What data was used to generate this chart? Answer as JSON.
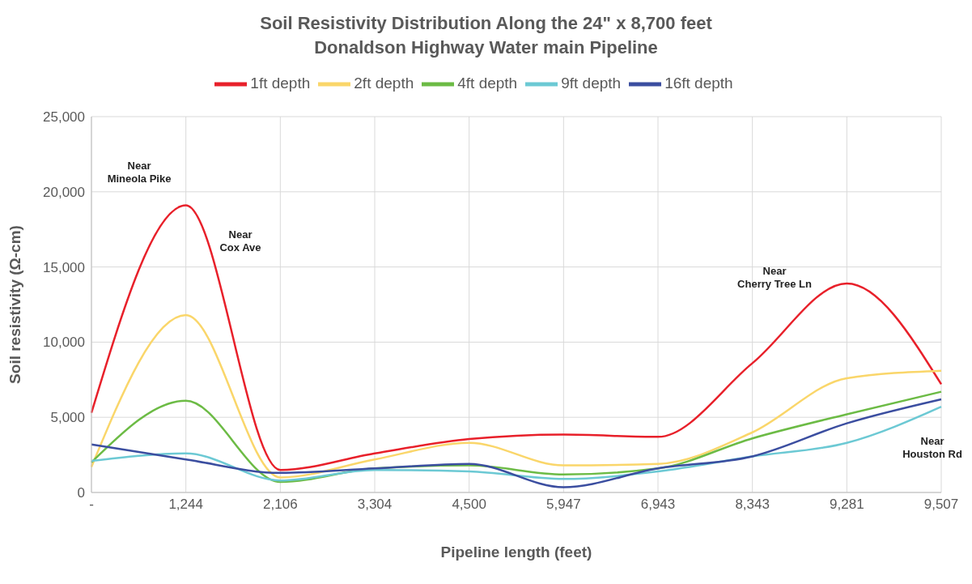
{
  "chart_data": {
    "type": "line",
    "title": "Soil Resistivity Distribution Along the 24\" x 8,700 feet\nDonaldson Highway Water main Pipeline",
    "xlabel": "Pipeline length (feet)",
    "ylabel": "Soil resistivity (Ω-cm)",
    "categories": [
      "-",
      "1,244",
      "2,106",
      "3,304",
      "4,500",
      "5,947",
      "6,943",
      "8,343",
      "9,281",
      "9,507"
    ],
    "series": [
      {
        "name": "1ft depth",
        "color": "#e8202a",
        "values": [
          5300,
          19100,
          1500,
          2600,
          3550,
          3850,
          3700,
          8600,
          13900,
          7200
        ]
      },
      {
        "name": "2ft depth",
        "color": "#fad66a",
        "values": [
          1700,
          11800,
          1000,
          2200,
          3300,
          1800,
          1900,
          4000,
          7600,
          8100
        ]
      },
      {
        "name": "4ft depth",
        "color": "#6cbb45",
        "values": [
          2000,
          6100,
          700,
          1600,
          1800,
          1200,
          1600,
          3600,
          5200,
          6700
        ]
      },
      {
        "name": "9ft depth",
        "color": "#6cc9d4",
        "values": [
          2100,
          2600,
          800,
          1500,
          1400,
          900,
          1400,
          2400,
          3300,
          5700
        ]
      },
      {
        "name": "16ft depth",
        "color": "#3b4ea0",
        "values": [
          3200,
          2200,
          1300,
          1600,
          1900,
          350,
          1600,
          2400,
          4600,
          6200
        ]
      }
    ],
    "ylim": [
      0,
      25000
    ],
    "yticks": [
      0,
      {
        "value": 5000,
        "label": "5,000"
      },
      {
        "value": 10000,
        "label": "10,000"
      },
      {
        "value": 15000,
        "label": "15,000"
      },
      {
        "value": 20000,
        "label": "20,000"
      },
      {
        "value": 25000,
        "label": "25,000"
      }
    ],
    "grid": true,
    "legend": "top",
    "marker": "none",
    "line_style": "solid",
    "annotations": [
      "Near\nMineola Pike",
      "Near\nCox Ave",
      "Near\nCherry Tree Ln",
      "Near\nHouston Rd"
    ]
  }
}
